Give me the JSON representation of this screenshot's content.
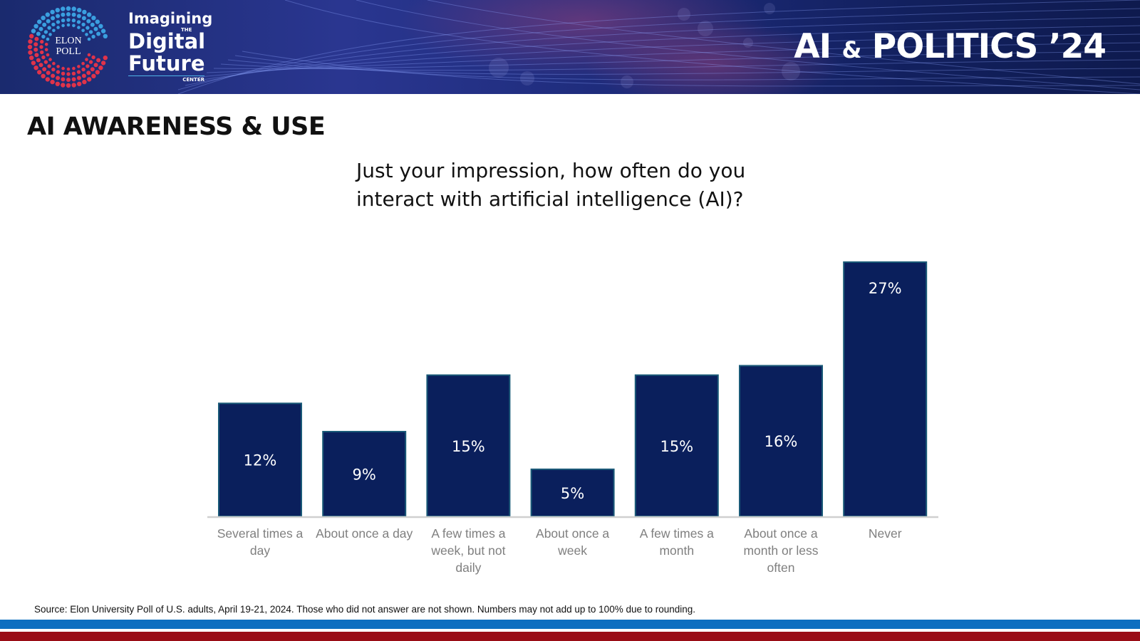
{
  "header": {
    "logo_text_line1": "ELON",
    "logo_text_line2": "POLL",
    "center_word1": "Imagining",
    "center_word_the": "THE",
    "center_word2": "Digital",
    "center_word3": "Future",
    "center_word_center": "CENTER",
    "brand_ai": "AI",
    "brand_amp": "&",
    "brand_politics": "POLITICS ’24"
  },
  "section_title": "AI AWARENESS & USE",
  "question": {
    "line1": "Just your impression, how often do you",
    "line2": "interact with artificial intelligence (AI)?"
  },
  "chart_data": {
    "type": "bar",
    "title": "Just your impression, how often do you interact with artificial intelligence (AI)?",
    "categories": [
      [
        "Several times a",
        "day"
      ],
      [
        "About once a day"
      ],
      [
        "A few times a",
        "week, but not",
        "daily"
      ],
      [
        "About once a",
        "week"
      ],
      [
        "A few times a",
        "month"
      ],
      [
        "About once a",
        "month or less",
        "often"
      ],
      [
        "Never"
      ]
    ],
    "values": [
      12,
      9,
      15,
      5,
      15,
      16,
      27
    ],
    "value_labels": [
      "12%",
      "9%",
      "15%",
      "5%",
      "15%",
      "16%",
      "27%"
    ],
    "unit": "%",
    "ylim": [
      0,
      27
    ],
    "grid": false,
    "legend": "none",
    "bar_color": "#0a1f5c",
    "bar_border_color": "#1a5a78",
    "label_color": "#7f7f7f"
  },
  "source": "Source: Elon University Poll of U.S. adults, April 19-21, 2024. Those who did not answer are not shown. Numbers may not add up to 100% due to rounding."
}
